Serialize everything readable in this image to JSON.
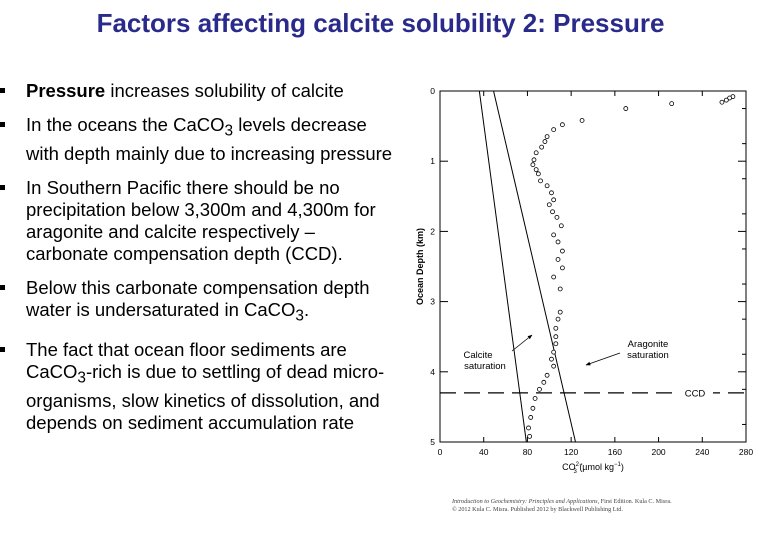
{
  "title": "Factors affecting calcite solubility 2: Pressure",
  "bullets": [
    {
      "bold": "Pressure",
      "text": " increases solubility of calcite"
    },
    {
      "segments": [
        "In the oceans the CaCO",
        "3",
        " levels decrease with depth mainly due to increasing pressure"
      ]
    },
    {
      "text": "In Southern Pacific there should be no precipitation below 3,300m and 4,300m for aragonite and calcite respectively – carbonate compensation depth (CCD)."
    },
    {
      "segments": [
        "Below this carbonate compensation depth water is undersaturated in CaCO",
        "3",
        "."
      ]
    },
    {
      "segments": [
        "The fact that ocean floor sediments are CaCO",
        "3",
        "-rich is due to settling of dead micro-organisms, slow kinetics of dissolution, and depends on sediment accumulation rate"
      ]
    }
  ],
  "chart_data": {
    "type": "scatter",
    "xlabel_main": "CO",
    "xlabel_sup": "2−",
    "xlabel_sub": "3",
    "xlabel_unit": " (µmol kg",
    "xlabel_unit_sup": "−1",
    "xlabel_end": ")",
    "ylabel": "Ocean Depth (km)",
    "xlim": [
      0,
      280
    ],
    "ylim": [
      0,
      5
    ],
    "xticks": [
      "0",
      "40",
      "80",
      "120",
      "160",
      "200",
      "240",
      "280"
    ],
    "yticks": [
      "0",
      "1",
      "2",
      "3",
      "4",
      "5"
    ],
    "series": [
      {
        "kind": "points",
        "values": [
          [
            268,
            0.08
          ],
          [
            265,
            0.1
          ],
          [
            262,
            0.13
          ],
          [
            258,
            0.16
          ],
          [
            212,
            0.18
          ],
          [
            170,
            0.25
          ],
          [
            130,
            0.42
          ],
          [
            112,
            0.48
          ],
          [
            104,
            0.55
          ],
          [
            98,
            0.65
          ],
          [
            96,
            0.72
          ],
          [
            93,
            0.8
          ],
          [
            88,
            0.88
          ],
          [
            86,
            0.98
          ],
          [
            85,
            1.05
          ],
          [
            88,
            1.12
          ],
          [
            90,
            1.18
          ],
          [
            92,
            1.28
          ],
          [
            98,
            1.35
          ],
          [
            102,
            1.45
          ],
          [
            104,
            1.55
          ],
          [
            100,
            1.62
          ],
          [
            103,
            1.72
          ],
          [
            107,
            1.8
          ],
          [
            111,
            1.92
          ],
          [
            104,
            2.05
          ],
          [
            108,
            2.15
          ],
          [
            112,
            2.28
          ],
          [
            108,
            2.4
          ],
          [
            112,
            2.52
          ],
          [
            104,
            2.65
          ],
          [
            110,
            2.82
          ],
          [
            110,
            3.15
          ],
          [
            108,
            3.25
          ],
          [
            106,
            3.38
          ],
          [
            106,
            3.5
          ],
          [
            106,
            3.6
          ],
          [
            104,
            3.72
          ],
          [
            102,
            3.82
          ],
          [
            104,
            3.92
          ],
          [
            98,
            4.05
          ],
          [
            95,
            4.15
          ],
          [
            91,
            4.25
          ],
          [
            87,
            4.38
          ],
          [
            85,
            4.52
          ],
          [
            83,
            4.65
          ],
          [
            81,
            4.8
          ],
          [
            82,
            4.92
          ]
        ]
      },
      {
        "kind": "line",
        "name": "Calcite saturation",
        "values": [
          [
            36,
            0
          ],
          [
            79,
            5
          ]
        ]
      },
      {
        "kind": "line",
        "name": "Aragonite saturation",
        "values": [
          [
            49,
            0
          ],
          [
            124,
            5
          ]
        ]
      },
      {
        "kind": "hline",
        "name": "CCD",
        "y": 4.3
      }
    ],
    "annotations": {
      "calcite_line1": "Calcite",
      "calcite_line2": "saturation",
      "aragonite_line1": "Aragonite",
      "aragonite_line2": "saturation",
      "ccd": "CCD"
    }
  },
  "credit": {
    "line1_italic": "Introduction to Geochemistry: Principles and Applications",
    "line1_rest": ", First Edition. Kula C. Misra.",
    "line2": "© 2012 Kula C. Misra. Published 2012 by Blackwell Publishing Ltd."
  }
}
